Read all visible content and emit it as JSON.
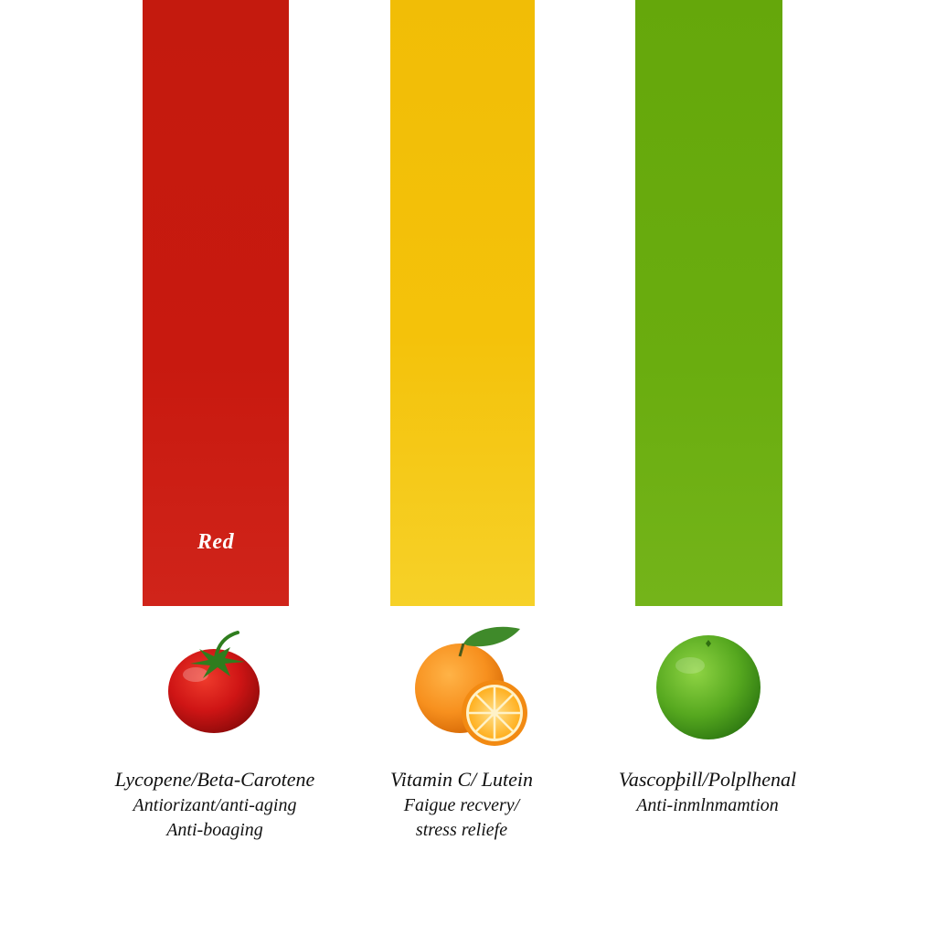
{
  "columns": [
    {
      "key": "red",
      "bar_color": "#c8190f",
      "bar_label": "Red",
      "fruit_icon": "tomato-icon",
      "title": "Lycopene/Beta-Carotene",
      "lines": [
        "Antiorizant/anti-aging",
        "Anti-boaging"
      ]
    },
    {
      "key": "yellow",
      "bar_color": "#f4c20a",
      "bar_label": "",
      "fruit_icon": "orange-icon",
      "title": "Vitamin C/ Lutein",
      "lines": [
        "Faigue recvery/",
        "stress reliefe"
      ]
    },
    {
      "key": "green",
      "bar_color": "#6aad0f",
      "bar_label": "",
      "fruit_icon": "lime-icon",
      "title": "Vascopþill/Polplhenal",
      "lines": [
        "Anti-inmlnmamtion"
      ]
    }
  ]
}
